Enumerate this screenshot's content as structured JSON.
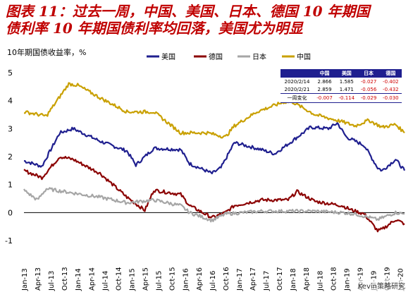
{
  "title": {
    "line1": "图表 11：过去一周，中国、美国、日本、德国 10 年期国",
    "line2": "债利率 10 年期国债利率均回落，美国尤为明显"
  },
  "chart_data": {
    "type": "line",
    "ylabel": "10年期国债收益率，%",
    "ylim": [
      -1,
      5
    ],
    "yticks": [
      "5",
      "4",
      "3",
      "2",
      "1",
      "0",
      "-1"
    ],
    "x_start": "2013-01",
    "x_end": "2020-02",
    "xticks": [
      "Jan-13",
      "Apr-13",
      "Jul-13",
      "Oct-13",
      "Jan-14",
      "Apr-14",
      "Jul-14",
      "Oct-14",
      "Jan-15",
      "Apr-15",
      "Jul-15",
      "Oct-15",
      "Jan-16",
      "Apr-16",
      "Jul-16",
      "Oct-16",
      "Jan-17",
      "Apr-17",
      "Jul-17",
      "Oct-17",
      "Jan-18",
      "Apr-18",
      "Jul-18",
      "Oct-18",
      "Jan-19",
      "Apr-19",
      "Jul-19",
      "Oct-19",
      "Jan-20"
    ],
    "legend_position": "top",
    "series": [
      {
        "name": "美国",
        "color": "#1f1f8f",
        "x": [
          "2013-01",
          "2013-05",
          "2013-09",
          "2013-12",
          "2014-06",
          "2014-12",
          "2015-02",
          "2015-06",
          "2015-12",
          "2016-02",
          "2016-07",
          "2016-09",
          "2016-12",
          "2017-06",
          "2017-09",
          "2017-12",
          "2018-05",
          "2018-09",
          "2018-11",
          "2019-01",
          "2019-05",
          "2019-08",
          "2019-09",
          "2019-12",
          "2020-02"
        ],
        "values": [
          1.85,
          1.65,
          2.85,
          3.0,
          2.55,
          2.2,
          1.7,
          2.3,
          2.25,
          1.75,
          1.4,
          1.6,
          2.5,
          2.25,
          2.1,
          2.45,
          3.05,
          3.0,
          3.2,
          2.7,
          2.4,
          1.6,
          1.5,
          1.9,
          1.5
        ]
      },
      {
        "name": "德国",
        "color": "#8b0000",
        "x": [
          "2013-01",
          "2013-05",
          "2013-09",
          "2013-12",
          "2014-06",
          "2014-12",
          "2015-04",
          "2015-06",
          "2015-12",
          "2016-02",
          "2016-07",
          "2016-10",
          "2016-12",
          "2017-06",
          "2017-12",
          "2018-02",
          "2018-06",
          "2018-12",
          "2019-02",
          "2019-05",
          "2019-08",
          "2019-09",
          "2019-12",
          "2020-02"
        ],
        "values": [
          1.5,
          1.25,
          2.0,
          1.9,
          1.4,
          0.55,
          0.08,
          0.8,
          0.65,
          0.25,
          -0.18,
          0.0,
          0.25,
          0.45,
          0.45,
          0.75,
          0.4,
          0.25,
          0.1,
          -0.05,
          -0.65,
          -0.6,
          -0.25,
          -0.4
        ]
      },
      {
        "name": "日本",
        "color": "#a6a6a6",
        "x": [
          "2013-01",
          "2013-04",
          "2013-06",
          "2013-12",
          "2014-06",
          "2014-12",
          "2015-06",
          "2015-12",
          "2016-02",
          "2016-07",
          "2016-10",
          "2017-06",
          "2017-12",
          "2018-06",
          "2018-12",
          "2019-03",
          "2019-08",
          "2019-12",
          "2020-02"
        ],
        "values": [
          0.8,
          0.45,
          0.85,
          0.7,
          0.55,
          0.35,
          0.45,
          0.25,
          0.0,
          -0.28,
          -0.05,
          0.05,
          0.05,
          0.05,
          0.0,
          -0.05,
          -0.25,
          0.0,
          -0.05
        ]
      },
      {
        "name": "中国",
        "color": "#c9a000",
        "x": [
          "2013-01",
          "2013-06",
          "2013-11",
          "2014-01",
          "2014-06",
          "2014-12",
          "2015-06",
          "2015-12",
          "2016-06",
          "2016-10",
          "2016-12",
          "2017-05",
          "2017-11",
          "2018-01",
          "2018-06",
          "2018-12",
          "2019-03",
          "2019-06",
          "2019-09",
          "2019-12",
          "2020-02"
        ],
        "values": [
          3.6,
          3.45,
          4.6,
          4.55,
          4.1,
          3.6,
          3.6,
          2.85,
          2.85,
          2.7,
          3.1,
          3.6,
          3.95,
          3.95,
          3.5,
          3.25,
          3.1,
          3.3,
          3.05,
          3.15,
          2.85
        ]
      }
    ]
  },
  "table": {
    "headers": [
      "",
      "中国",
      "美国",
      "日本",
      "德国"
    ],
    "rows": [
      [
        "2020/2/14",
        "2.866",
        "1.585",
        "-0.027",
        "-0.402"
      ],
      [
        "2020/2/21",
        "2.859",
        "1.471",
        "-0.056",
        "-0.432"
      ],
      [
        "一周变化",
        "-0.007",
        "-0.114",
        "-0.029",
        "-0.030"
      ]
    ]
  },
  "watermark": "Kevin策略研究"
}
